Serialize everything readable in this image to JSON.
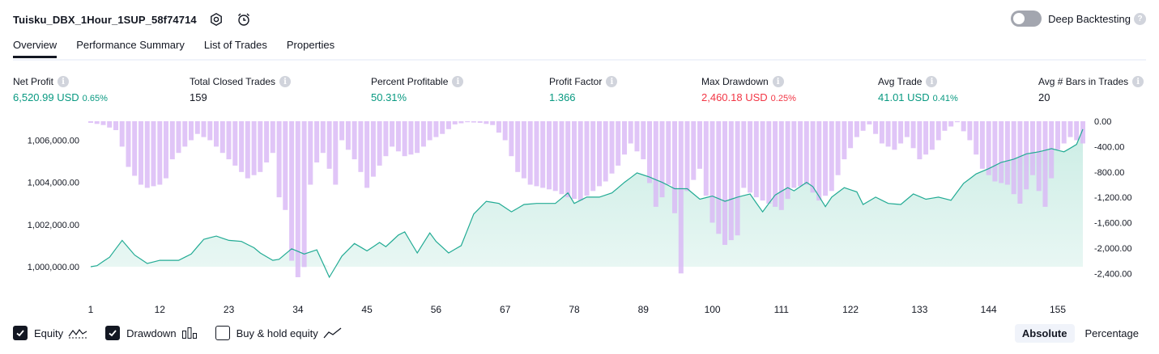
{
  "header": {
    "strategy_name": "Tuisku_DBX_1Hour_1SUP_58f74714",
    "icons": [
      "settings-icon",
      "alarm-add-icon"
    ]
  },
  "deep_backtesting": {
    "label": "Deep Backtesting",
    "enabled": false,
    "help_icon": "question-icon"
  },
  "tabs": [
    {
      "label": "Overview",
      "active": true
    },
    {
      "label": "Performance Summary",
      "active": false
    },
    {
      "label": "List of Trades",
      "active": false
    },
    {
      "label": "Properties",
      "active": false
    }
  ],
  "metrics": [
    {
      "label": "Net Profit",
      "value": "6,520.99 USD",
      "pct": "0.65%",
      "color": "#089981"
    },
    {
      "label": "Total Closed Trades",
      "value": "159",
      "pct": "",
      "color": "#131722"
    },
    {
      "label": "Percent Profitable",
      "value": "50.31%",
      "pct": "",
      "color": "#089981"
    },
    {
      "label": "Profit Factor",
      "value": "1.366",
      "pct": "",
      "color": "#089981"
    },
    {
      "label": "Max Drawdown",
      "value": "2,460.18 USD",
      "pct": "0.25%",
      "color": "#f23645"
    },
    {
      "label": "Avg Trade",
      "value": "41.01 USD",
      "pct": "0.41%",
      "color": "#089981"
    },
    {
      "label": "Avg # Bars in Trades",
      "value": "20",
      "pct": "",
      "color": "#131722"
    }
  ],
  "colors": {
    "equity_line": "#22ab94",
    "equity_fill": "#ccede5",
    "drawdown_bar": "#d9b8f5",
    "negative_marker": "#f7525f"
  },
  "chart_data": {
    "type": "area",
    "x_ticks": [
      "1",
      "12",
      "23",
      "34",
      "45",
      "56",
      "67",
      "78",
      "89",
      "100",
      "111",
      "122",
      "133",
      "144",
      "155"
    ],
    "x_range": [
      1,
      159
    ],
    "left_axis": {
      "ticks": [
        "1,000,000.00",
        "1,002,000.00",
        "1,004,000.00",
        "1,006,000.00"
      ],
      "range": [
        999500,
        1006900
      ]
    },
    "right_axis": {
      "ticks": [
        "0.00",
        "-400.00",
        "-800.00",
        "-1,200.00",
        "-1,600.00",
        "-2,000.00",
        "-2,400.00"
      ],
      "range": [
        -2460,
        0
      ]
    },
    "equity_anchors": [
      [
        1,
        1000000
      ],
      [
        2,
        1000050
      ],
      [
        4,
        1000450
      ],
      [
        6,
        1001250
      ],
      [
        8,
        1000550
      ],
      [
        10,
        1000150
      ],
      [
        12,
        1000300
      ],
      [
        15,
        1000300
      ],
      [
        17,
        1000600
      ],
      [
        19,
        1001300
      ],
      [
        21,
        1001450
      ],
      [
        23,
        1001250
      ],
      [
        25,
        1001200
      ],
      [
        27,
        1000900
      ],
      [
        28,
        1000650
      ],
      [
        30,
        1000300
      ],
      [
        31,
        1000350
      ],
      [
        33,
        1000850
      ],
      [
        35,
        1000600
      ],
      [
        37,
        1000800
      ],
      [
        39,
        999500
      ],
      [
        41,
        1000500
      ],
      [
        43,
        1001100
      ],
      [
        45,
        1000750
      ],
      [
        47,
        1001150
      ],
      [
        48,
        1000950
      ],
      [
        50,
        1001500
      ],
      [
        51,
        1001650
      ],
      [
        52,
        1001150
      ],
      [
        53,
        1000650
      ],
      [
        55,
        1001600
      ],
      [
        56,
        1001200
      ],
      [
        58,
        1000650
      ],
      [
        60,
        1001000
      ],
      [
        62,
        1002500
      ],
      [
        64,
        1003100
      ],
      [
        66,
        1003000
      ],
      [
        68,
        1002600
      ],
      [
        70,
        1002950
      ],
      [
        72,
        1003000
      ],
      [
        75,
        1003000
      ],
      [
        77,
        1003500
      ],
      [
        78,
        1003000
      ],
      [
        80,
        1003300
      ],
      [
        82,
        1003300
      ],
      [
        84,
        1003500
      ],
      [
        86,
        1004000
      ],
      [
        88,
        1004450
      ],
      [
        90,
        1004250
      ],
      [
        92,
        1004000
      ],
      [
        94,
        1003700
      ],
      [
        96,
        1003700
      ],
      [
        98,
        1003200
      ],
      [
        100,
        1003350
      ],
      [
        102,
        1003100
      ],
      [
        104,
        1003300
      ],
      [
        106,
        1003450
      ],
      [
        108,
        1002600
      ],
      [
        110,
        1003400
      ],
      [
        112,
        1003750
      ],
      [
        113,
        1003600
      ],
      [
        115,
        1004000
      ],
      [
        116,
        1003800
      ],
      [
        118,
        1002850
      ],
      [
        119,
        1003300
      ],
      [
        121,
        1003750
      ],
      [
        123,
        1003550
      ],
      [
        124,
        1002950
      ],
      [
        126,
        1003300
      ],
      [
        128,
        1003000
      ],
      [
        130,
        1002950
      ],
      [
        132,
        1003450
      ],
      [
        134,
        1003200
      ],
      [
        136,
        1003300
      ],
      [
        138,
        1003150
      ],
      [
        140,
        1003950
      ],
      [
        142,
        1004400
      ],
      [
        144,
        1004650
      ],
      [
        146,
        1004950
      ],
      [
        148,
        1005100
      ],
      [
        150,
        1005350
      ],
      [
        152,
        1005450
      ],
      [
        154,
        1005600
      ],
      [
        156,
        1005450
      ],
      [
        158,
        1005800
      ],
      [
        159,
        1006520
      ]
    ],
    "drawdown_anchors": [
      [
        1,
        -25
      ],
      [
        3,
        -60
      ],
      [
        5,
        -140
      ],
      [
        6,
        -400
      ],
      [
        7,
        -720
      ],
      [
        9,
        -1000
      ],
      [
        10,
        -1050
      ],
      [
        12,
        -1000
      ],
      [
        13,
        -900
      ],
      [
        14,
        -600
      ],
      [
        16,
        -400
      ],
      [
        18,
        -200
      ],
      [
        20,
        -300
      ],
      [
        22,
        -500
      ],
      [
        24,
        -700
      ],
      [
        26,
        -900
      ],
      [
        28,
        -800
      ],
      [
        30,
        -500
      ],
      [
        31,
        -1200
      ],
      [
        32,
        -1400
      ],
      [
        33,
        -2200
      ],
      [
        34,
        -2460
      ],
      [
        35,
        -2300
      ],
      [
        36,
        -1000
      ],
      [
        37,
        -650
      ],
      [
        38,
        -500
      ],
      [
        40,
        -1000
      ],
      [
        41,
        -300
      ],
      [
        43,
        -600
      ],
      [
        44,
        -800
      ],
      [
        45,
        -1050
      ],
      [
        47,
        -700
      ],
      [
        49,
        -400
      ],
      [
        51,
        -550
      ],
      [
        53,
        -500
      ],
      [
        55,
        -300
      ],
      [
        57,
        -200
      ],
      [
        59,
        -50
      ],
      [
        61,
        -15
      ],
      [
        63,
        -25
      ],
      [
        65,
        -60
      ],
      [
        67,
        -300
      ],
      [
        69,
        -800
      ],
      [
        71,
        -1000
      ],
      [
        73,
        -1050
      ],
      [
        75,
        -1100
      ],
      [
        77,
        -1200
      ],
      [
        79,
        -1250
      ],
      [
        81,
        -1100
      ],
      [
        83,
        -950
      ],
      [
        85,
        -700
      ],
      [
        87,
        -350
      ],
      [
        89,
        -600
      ],
      [
        91,
        -1350
      ],
      [
        92,
        -1200
      ],
      [
        93,
        -1000
      ],
      [
        94,
        -1450
      ],
      [
        95,
        -2400
      ],
      [
        96,
        -1100
      ],
      [
        98,
        -750
      ],
      [
        100,
        -1600
      ],
      [
        102,
        -1950
      ],
      [
        104,
        -1800
      ],
      [
        105,
        -1050
      ],
      [
        107,
        -1200
      ],
      [
        109,
        -1300
      ],
      [
        111,
        -1400
      ],
      [
        113,
        -1050
      ],
      [
        115,
        -1000
      ],
      [
        117,
        -1250
      ],
      [
        119,
        -1100
      ],
      [
        121,
        -600
      ],
      [
        123,
        -250
      ],
      [
        125,
        -50
      ],
      [
        127,
        -350
      ],
      [
        129,
        -450
      ],
      [
        131,
        -250
      ],
      [
        133,
        -600
      ],
      [
        135,
        -450
      ],
      [
        137,
        -150
      ],
      [
        139,
        -15
      ],
      [
        141,
        -300
      ],
      [
        143,
        -750
      ],
      [
        145,
        -950
      ],
      [
        147,
        -1000
      ],
      [
        149,
        -1300
      ],
      [
        151,
        -850
      ],
      [
        153,
        -1350
      ],
      [
        155,
        -450
      ],
      [
        157,
        -250
      ],
      [
        159,
        -350
      ]
    ]
  },
  "legend": {
    "equity": {
      "label": "Equity",
      "checked": true,
      "icon": "equity-line-icon"
    },
    "drawdown": {
      "label": "Drawdown",
      "checked": true,
      "icon": "drawdown-bars-icon"
    },
    "buy_hold": {
      "label": "Buy & hold equity",
      "checked": false,
      "icon": "buy-hold-line-icon"
    }
  },
  "mode": {
    "options": [
      "Absolute",
      "Percentage"
    ],
    "selected": "Absolute"
  }
}
